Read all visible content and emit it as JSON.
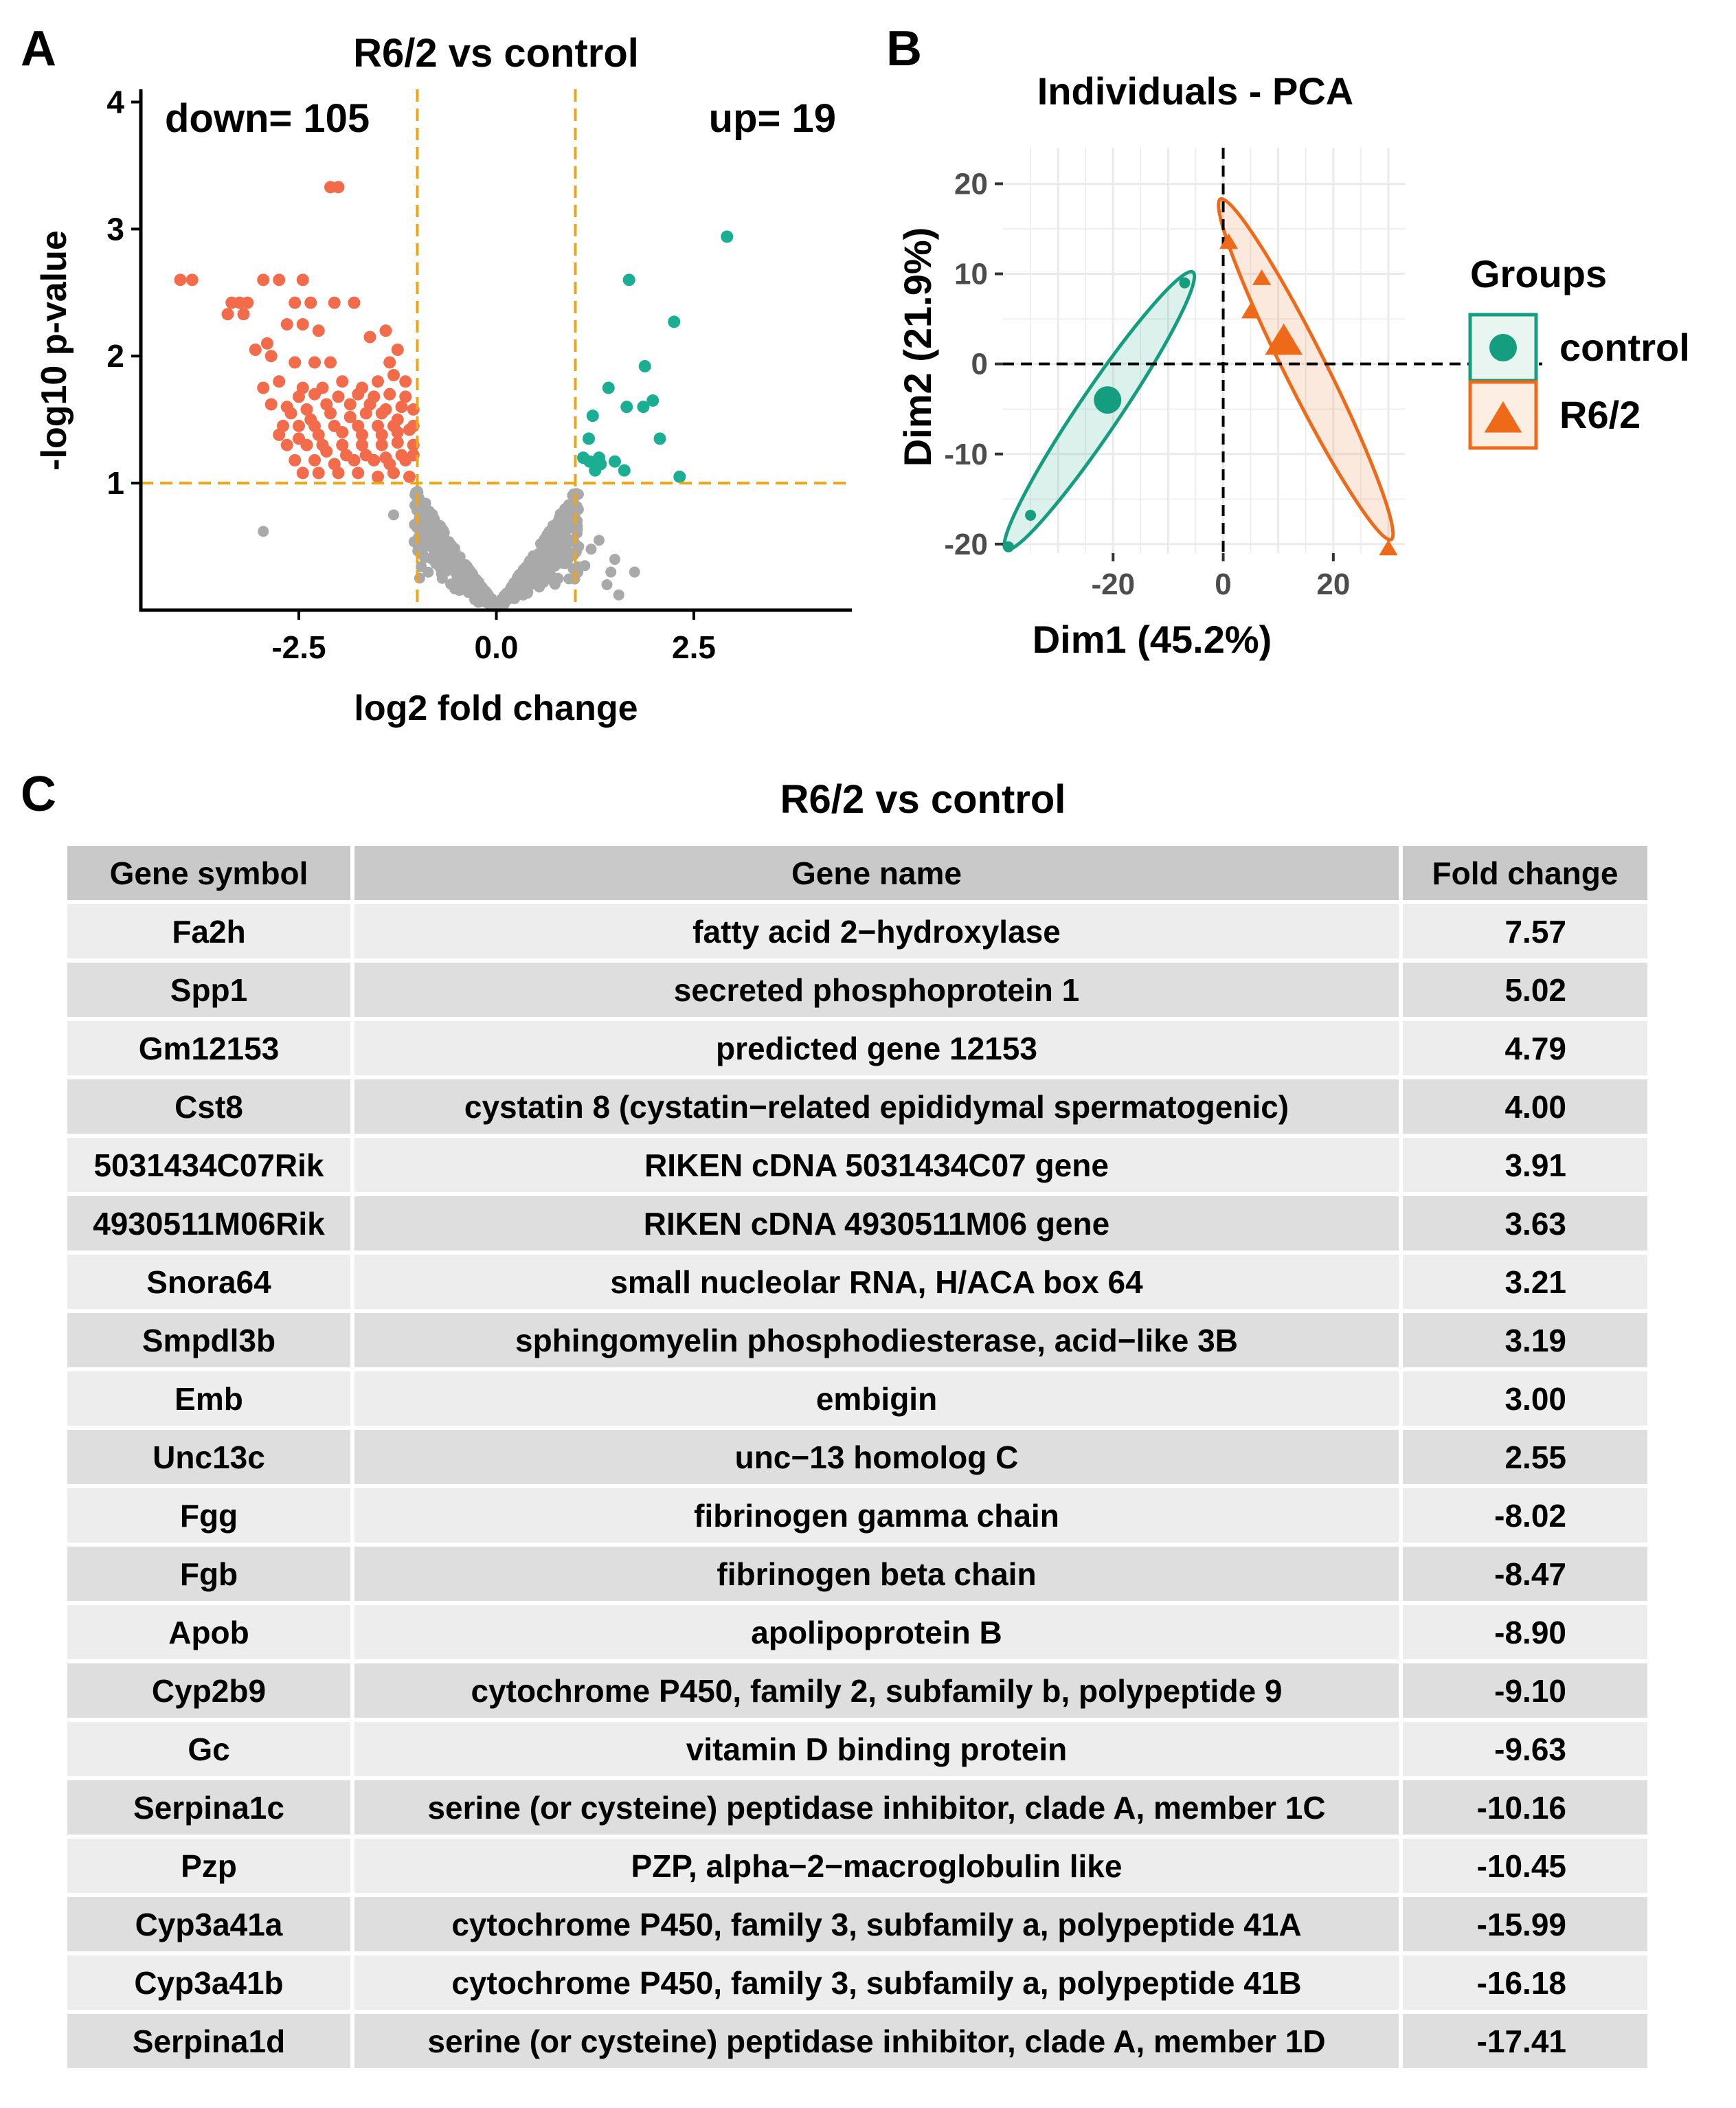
{
  "panels": {
    "a": "A",
    "b": "B",
    "c": "C"
  },
  "colors": {
    "down": "#f26b4a",
    "up": "#1aae92",
    "ns": "#a9a9a9",
    "threshold": "#f0a418",
    "control": "#149e7f",
    "r62": "#ee6a18"
  },
  "chart_data": [
    {
      "type": "scatter",
      "title": "R6/2 vs control",
      "xlabel": "log2 fold change",
      "ylabel": "-log10 p-value",
      "xlim": [
        -4.5,
        4.5
      ],
      "ylim": [
        0,
        4.1
      ],
      "xticks": [
        "-2.5",
        "0.0",
        "2.5"
      ],
      "yticks": [
        "1",
        "2",
        "3",
        "4"
      ],
      "thresholds": {
        "x": [
          -1,
          1
        ],
        "y": 1
      },
      "annotations": {
        "down": "down= 105",
        "up": "up= 19"
      },
      "up_points": [
        [
          2.92,
          2.94
        ],
        [
          2.25,
          2.27
        ],
        [
          1.68,
          2.6
        ],
        [
          1.88,
          1.92
        ],
        [
          1.42,
          1.75
        ],
        [
          1.65,
          1.6
        ],
        [
          1.86,
          1.6
        ],
        [
          1.98,
          1.65
        ],
        [
          2.07,
          1.35
        ],
        [
          1.22,
          1.53
        ],
        [
          1.17,
          1.35
        ],
        [
          1.3,
          1.2
        ],
        [
          1.5,
          1.17
        ],
        [
          1.18,
          1.17
        ],
        [
          1.25,
          1.1
        ],
        [
          1.32,
          1.15
        ],
        [
          1.62,
          1.1
        ],
        [
          2.32,
          1.05
        ],
        [
          1.1,
          1.2
        ]
      ],
      "down_points": [
        [
          -4.0,
          2.6
        ],
        [
          -3.85,
          2.6
        ],
        [
          -3.35,
          2.42
        ],
        [
          -3.25,
          2.42
        ],
        [
          -3.15,
          2.42
        ],
        [
          -3.4,
          2.33
        ],
        [
          -3.2,
          2.33
        ],
        [
          -2.95,
          2.6
        ],
        [
          -2.75,
          2.6
        ],
        [
          -2.45,
          2.6
        ],
        [
          -2.1,
          3.33
        ],
        [
          -2.0,
          3.33
        ],
        [
          -2.55,
          2.42
        ],
        [
          -2.35,
          2.42
        ],
        [
          -2.05,
          2.42
        ],
        [
          -1.8,
          2.42
        ],
        [
          -2.65,
          2.25
        ],
        [
          -2.45,
          2.25
        ],
        [
          -2.25,
          2.2
        ],
        [
          -2.85,
          2.0
        ],
        [
          -2.55,
          1.95
        ],
        [
          -2.3,
          1.95
        ],
        [
          -2.1,
          1.95
        ],
        [
          -1.6,
          2.15
        ],
        [
          -1.4,
          2.2
        ],
        [
          -1.25,
          2.05
        ],
        [
          -2.95,
          1.75
        ],
        [
          -2.75,
          1.8
        ],
        [
          -2.45,
          1.75
        ],
        [
          -2.2,
          1.75
        ],
        [
          -1.95,
          1.8
        ],
        [
          -1.7,
          1.75
        ],
        [
          -1.5,
          1.8
        ],
        [
          -1.3,
          1.85
        ],
        [
          -1.15,
          1.8
        ],
        [
          -2.85,
          1.62
        ],
        [
          -2.65,
          1.6
        ],
        [
          -2.4,
          1.58
        ],
        [
          -2.15,
          1.62
        ],
        [
          -1.85,
          1.62
        ],
        [
          -1.6,
          1.62
        ],
        [
          -1.4,
          1.58
        ],
        [
          -1.2,
          1.6
        ],
        [
          -1.05,
          1.58
        ],
        [
          -2.7,
          1.45
        ],
        [
          -2.5,
          1.45
        ],
        [
          -2.3,
          1.45
        ],
        [
          -2.05,
          1.45
        ],
        [
          -1.75,
          1.45
        ],
        [
          -1.5,
          1.45
        ],
        [
          -1.3,
          1.45
        ],
        [
          -1.1,
          1.42
        ],
        [
          -2.65,
          1.3
        ],
        [
          -2.4,
          1.3
        ],
        [
          -2.2,
          1.3
        ],
        [
          -1.95,
          1.3
        ],
        [
          -1.7,
          1.3
        ],
        [
          -1.45,
          1.3
        ],
        [
          -1.25,
          1.32
        ],
        [
          -1.05,
          1.3
        ],
        [
          -2.55,
          1.18
        ],
        [
          -2.3,
          1.18
        ],
        [
          -2.05,
          1.15
        ],
        [
          -1.8,
          1.18
        ],
        [
          -1.55,
          1.18
        ],
        [
          -1.35,
          1.15
        ],
        [
          -1.15,
          1.18
        ],
        [
          -2.45,
          1.08
        ],
        [
          -2.25,
          1.08
        ],
        [
          -2.0,
          1.08
        ],
        [
          -1.75,
          1.08
        ],
        [
          -1.5,
          1.05
        ],
        [
          -1.3,
          1.08
        ],
        [
          -1.1,
          1.05
        ],
        [
          -2.15,
          1.25
        ],
        [
          -1.9,
          1.22
        ],
        [
          -1.65,
          1.22
        ],
        [
          -1.4,
          1.2
        ],
        [
          -1.2,
          1.22
        ],
        [
          -2.6,
          1.55
        ],
        [
          -2.35,
          1.5
        ],
        [
          -2.1,
          1.55
        ],
        [
          -1.85,
          1.52
        ],
        [
          -1.65,
          1.55
        ],
        [
          -1.45,
          1.55
        ],
        [
          -1.25,
          1.5
        ],
        [
          -1.05,
          1.45
        ],
        [
          -2.5,
          1.68
        ],
        [
          -2.3,
          1.7
        ],
        [
          -2.0,
          1.68
        ],
        [
          -1.75,
          1.7
        ],
        [
          -1.55,
          1.68
        ],
        [
          -1.35,
          1.7
        ],
        [
          -1.15,
          1.68
        ],
        [
          -2.75,
          1.38
        ],
        [
          -2.5,
          1.35
        ],
        [
          -2.25,
          1.38
        ],
        [
          -1.95,
          1.4
        ],
        [
          -1.7,
          1.38
        ],
        [
          -1.45,
          1.38
        ],
        [
          -1.25,
          1.4
        ],
        [
          -1.05,
          1.22
        ],
        [
          -3.05,
          2.05
        ],
        [
          -2.9,
          2.1
        ],
        [
          -1.35,
          1.95
        ]
      ]
    },
    {
      "type": "scatter",
      "title": "Individuals - PCA",
      "xlabel": "Dim1 (45.2%)",
      "ylabel": "Dim2 (21.9%)",
      "xlim": [
        -40,
        33
      ],
      "ylim": [
        -21,
        24
      ],
      "xticks": [
        "-20",
        "0",
        "20"
      ],
      "yticks": [
        "20",
        "10",
        "0",
        "-10",
        "-20"
      ],
      "legend_title": "Groups",
      "series": [
        {
          "name": "control",
          "shape": "circle",
          "points": [
            [
              -39,
              -20.3
            ],
            [
              -35,
              -16.8
            ],
            [
              -7,
              9
            ],
            [
              -21,
              -4
            ]
          ],
          "centroid": [
            -21,
            -4
          ]
        },
        {
          "name": "R6/2",
          "shape": "triangle",
          "points": [
            [
              1,
              13.5
            ],
            [
              7,
              9.5
            ],
            [
              5,
              5.8
            ],
            [
              10,
              2.5
            ],
            [
              30,
              -20.5
            ]
          ],
          "centroid": [
            11,
            2.5
          ]
        }
      ]
    }
  ],
  "table": {
    "title": "R6/2 vs control",
    "columns": [
      "Gene symbol",
      "Gene name",
      "Fold change"
    ],
    "rows": [
      [
        "Fa2h",
        "fatty acid 2−hydroxylase",
        "7.57"
      ],
      [
        "Spp1",
        "secreted phosphoprotein 1",
        "5.02"
      ],
      [
        "Gm12153",
        "predicted gene 12153",
        "4.79"
      ],
      [
        "Cst8",
        "cystatin 8 (cystatin−related epididymal spermatogenic)",
        "4.00"
      ],
      [
        "5031434C07Rik",
        "RIKEN cDNA 5031434C07 gene",
        "3.91"
      ],
      [
        "4930511M06Rik",
        "RIKEN cDNA 4930511M06 gene",
        "3.63"
      ],
      [
        "Snora64",
        "small nucleolar RNA, H/ACA box 64",
        "3.21"
      ],
      [
        "Smpdl3b",
        "sphingomyelin phosphodiesterase, acid−like 3B",
        "3.19"
      ],
      [
        "Emb",
        "embigin",
        "3.00"
      ],
      [
        "Unc13c",
        "unc−13 homolog C",
        "2.55"
      ],
      [
        "Fgg",
        "fibrinogen gamma chain",
        "-8.02"
      ],
      [
        "Fgb",
        "fibrinogen beta chain",
        "-8.47"
      ],
      [
        "Apob",
        "apolipoprotein B",
        "-8.90"
      ],
      [
        "Cyp2b9",
        "cytochrome P450, family 2, subfamily b, polypeptide 9",
        "-9.10"
      ],
      [
        "Gc",
        "vitamin D binding protein",
        "-9.63"
      ],
      [
        "Serpina1c",
        "serine (or cysteine) peptidase inhibitor, clade A, member 1C",
        "-10.16"
      ],
      [
        "Pzp",
        "PZP, alpha−2−macroglobulin like",
        "-10.45"
      ],
      [
        "Cyp3a41a",
        "cytochrome P450, family 3, subfamily a, polypeptide 41A",
        "-15.99"
      ],
      [
        "Cyp3a41b",
        "cytochrome P450, family 3, subfamily a, polypeptide 41B",
        "-16.18"
      ],
      [
        "Serpina1d",
        "serine (or cysteine) peptidase inhibitor, clade A, member 1D",
        "-17.41"
      ]
    ]
  }
}
